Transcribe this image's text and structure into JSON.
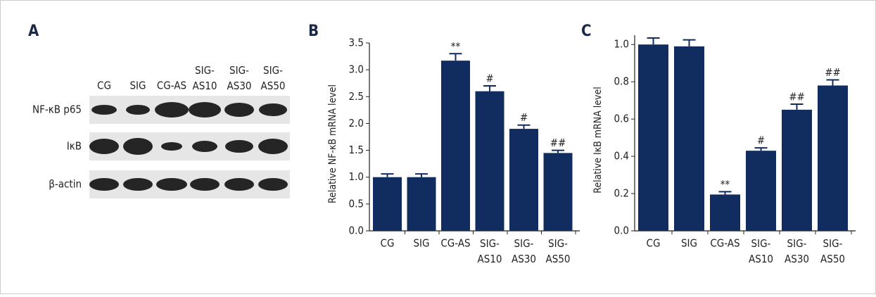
{
  "panel_labels": [
    "A",
    "B",
    "C"
  ],
  "blot": {
    "lanes": [
      "CG",
      "SIG",
      "CG-AS",
      "SIG-AS10",
      "SIG-AS30",
      "SIG-AS50"
    ],
    "rows": [
      "NF-κB p65",
      "IκB",
      "β-actin"
    ]
  },
  "chart_data": [
    {
      "type": "bar",
      "y_label": "Relative NF-κB mRNA level",
      "categories": [
        "CG",
        "SIG",
        "CG-AS",
        "SIG-AS10",
        "SIG-AS30",
        "SIG-AS50"
      ],
      "values": [
        1.0,
        1.0,
        3.17,
        2.6,
        1.9,
        1.45
      ],
      "error": [
        0.06,
        0.06,
        0.13,
        0.1,
        0.07,
        0.05
      ],
      "annotations": [
        null,
        null,
        "**",
        "#",
        "#",
        "##"
      ],
      "color": "#112c5e",
      "ylim": [
        0,
        3.5
      ],
      "yticks": [
        {
          "value": 0,
          "label": "0.0"
        },
        0.5,
        {
          "value": 1,
          "label": "1.0"
        },
        1.5,
        {
          "value": 2,
          "label": "2.0"
        },
        2.5,
        {
          "value": 3,
          "label": "3.0"
        },
        3.5
      ]
    },
    {
      "type": "bar",
      "y_label": "Relative IκB mRNA level",
      "categories": [
        "CG",
        "SIG",
        "CG-AS",
        "SIG-AS10",
        "SIG-AS30",
        "SIG-AS50"
      ],
      "values": [
        1.0,
        0.99,
        0.195,
        0.43,
        0.65,
        0.78
      ],
      "error": [
        0.035,
        0.035,
        0.015,
        0.015,
        0.03,
        0.03
      ],
      "annotations": [
        null,
        null,
        "**",
        "#",
        "##",
        "##"
      ],
      "color": "#112c5e",
      "ylim": [
        0,
        1.05
      ],
      "yticks": [
        {
          "value": 0,
          "label": "0.0"
        },
        0.2,
        0.4,
        0.6,
        0.8,
        {
          "value": 1,
          "label": "1.0"
        }
      ]
    }
  ]
}
